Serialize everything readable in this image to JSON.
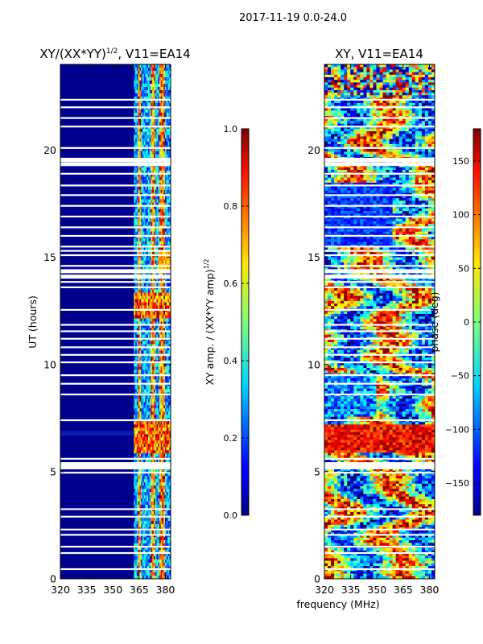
{
  "suptitle": "2017-11-19 0.0-24.0",
  "chart_data": [
    {
      "type": "heatmap",
      "title": "XY/(XX*YY)^1/2, V11=EA14",
      "title_main": "XY/(XX*YY)",
      "title_exp": "1/2",
      "title_suffix": ", V11=EA14",
      "xlabel": "",
      "ylabel": "UT (hours)",
      "xlim": [
        320,
        383
      ],
      "ylim": [
        0,
        24
      ],
      "xticks": [
        320,
        335,
        350,
        365,
        380
      ],
      "yticks": [
        0,
        5,
        10,
        15,
        20
      ],
      "colormap": "jet",
      "colorbar": {
        "label": "XY amp. / (XX*YY amp)^1/2",
        "label_main": "XY amp. / (XX*YY amp)",
        "label_exp": "1/2",
        "range": [
          0.0,
          1.0
        ],
        "ticks": [
          "0.0",
          "0.2",
          "0.4",
          "0.6",
          "0.8",
          "1.0"
        ]
      }
    },
    {
      "type": "heatmap",
      "title": "XY, V11=EA14",
      "xlabel": "frequency (MHz)",
      "ylabel": "",
      "xlim": [
        320,
        383
      ],
      "ylim": [
        0,
        24
      ],
      "xticks": [
        320,
        335,
        350,
        365,
        380
      ],
      "yticks": [
        0,
        5,
        10,
        15,
        20
      ],
      "colormap": "jet",
      "colorbar": {
        "label": "phase (deg)",
        "range": [
          -180,
          180
        ],
        "ticks": [
          "−150",
          "−100",
          "−50",
          "0",
          "50",
          "100",
          "150"
        ]
      }
    }
  ]
}
